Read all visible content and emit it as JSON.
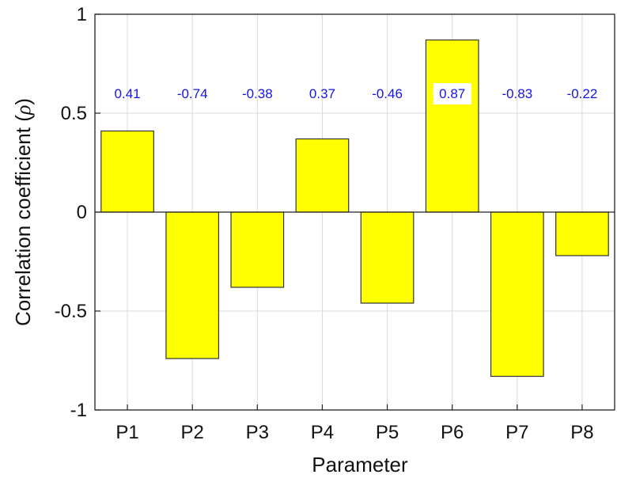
{
  "chart_data": {
    "type": "bar",
    "categories": [
      "P1",
      "P2",
      "P3",
      "P4",
      "P5",
      "P6",
      "P7",
      "P8"
    ],
    "values": [
      0.41,
      -0.74,
      -0.38,
      0.37,
      -0.46,
      0.87,
      -0.83,
      -0.22
    ],
    "data_labels": [
      "0.41",
      "-0.74",
      "-0.38",
      "0.37",
      "-0.46",
      "0.87",
      "-0.83",
      "-0.22"
    ],
    "title": "",
    "xlabel": "Parameter",
    "ylabel_main": "Correlation coefficient (",
    "ylabel_symbol": "ρ",
    "ylabel_end": ")",
    "ylim": [
      -1,
      1
    ],
    "yticks": [
      -1,
      -0.5,
      0,
      0.5,
      1
    ],
    "ytick_labels": [
      "-1",
      "-0.5",
      "0",
      "0.5",
      "1"
    ],
    "grid": true,
    "bar_color": "#ffff00",
    "bar_edge_color": "#333333",
    "label_color": "#1414e6",
    "grid_color": "#d9d9d9"
  }
}
